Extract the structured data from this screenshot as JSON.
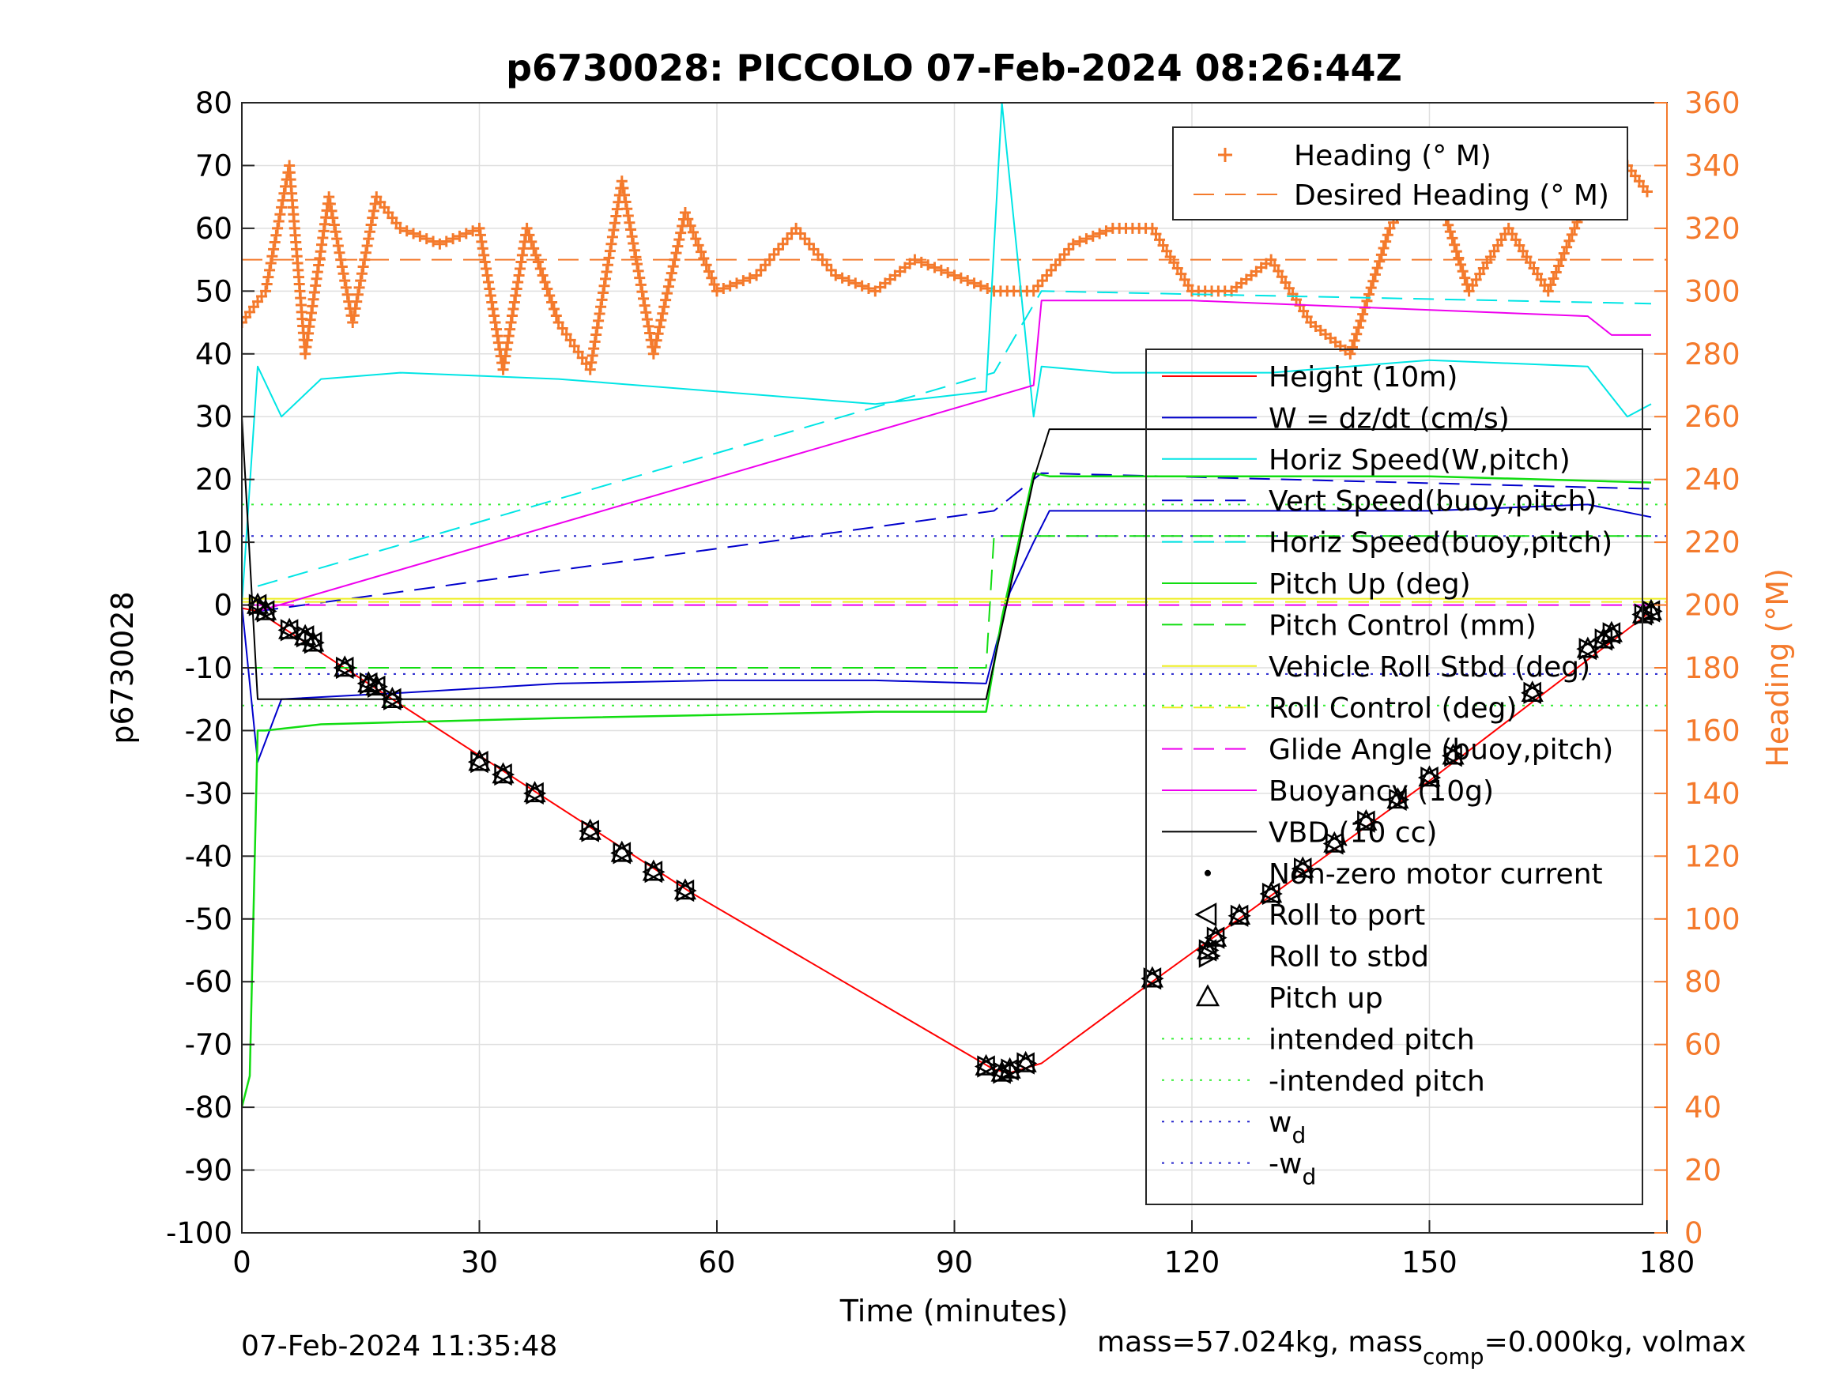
{
  "chart_data": {
    "type": "line",
    "title": "p6730028: PICCOLO 07-Feb-2024 08:26:44Z",
    "xlabel": "Time (minutes)",
    "ylabel": "p6730028",
    "y2label": "Heading (°M)",
    "xlim": [
      0,
      180
    ],
    "ylim": [
      -100,
      80
    ],
    "y2lim": [
      0,
      360
    ],
    "xticks": [
      "0",
      "30",
      "60",
      "90",
      "120",
      "150",
      "180"
    ],
    "yticks": [
      "80",
      "70",
      "60",
      "50",
      "40",
      "30",
      "20",
      "10",
      "0",
      "-10",
      "-20",
      "-30",
      "-40",
      "-50",
      "-60",
      "-70",
      "-80",
      "-90",
      "-100"
    ],
    "y2ticks": [
      "360",
      "340",
      "320",
      "300",
      "280",
      "260",
      "240",
      "220",
      "200",
      "180",
      "160",
      "140",
      "120",
      "100",
      "80",
      "60",
      "40",
      "20",
      "0"
    ],
    "grid": true,
    "legend_top": {
      "placement": "top-right",
      "entries": [
        "Heading (° M)",
        "Desired Heading (° M)"
      ]
    },
    "legend_main": {
      "placement": "right",
      "entries": [
        "Height (10m)",
        "W = dz/dt (cm/s)",
        "Horiz Speed(W,pitch)",
        "Vert Speed(buoy,pitch)",
        "Horiz Speed(buoy,pitch)",
        "Pitch Up (deg)",
        "Pitch Control (mm)",
        "Vehicle Roll Stbd (deg)",
        "Roll Control (deg)",
        "Glide Angle (buoy,pitch)",
        "Buoyancy (10g)",
        "VBD (10 cc)",
        "Non-zero motor current",
        "Roll to port",
        "Roll to stbd",
        "Pitch up",
        "intended pitch",
        "-intended pitch",
        "w",
        "-w"
      ],
      "subscripts": {
        "w": "d",
        "-w": "d"
      }
    },
    "series": [
      {
        "name": "Height (10m)",
        "x": [
          0,
          2,
          19,
          57,
          95,
          97,
          101,
          115,
          150,
          178
        ],
        "values": [
          -0.5,
          -1,
          -15,
          -46,
          -74,
          -74.5,
          -73,
          -60,
          -28,
          -1
        ]
      },
      {
        "name": "W = dz/dt (cm/s)",
        "x": [
          0,
          2,
          5,
          20,
          40,
          60,
          80,
          94,
          97,
          100,
          102,
          110,
          130,
          150,
          170,
          178
        ],
        "values": [
          0,
          -25,
          -15,
          -14,
          -12.5,
          -12,
          -12,
          -12.5,
          2,
          10,
          15,
          15,
          15,
          15,
          16,
          14
        ]
      },
      {
        "name": "Horiz Speed(W,pitch)",
        "x": [
          0,
          2,
          5,
          10,
          20,
          40,
          60,
          80,
          94,
          96,
          100,
          101,
          110,
          130,
          150,
          170,
          175,
          178
        ],
        "values": [
          0,
          38,
          30,
          36,
          37,
          36,
          34,
          32,
          34,
          80,
          30,
          38,
          37,
          37,
          39,
          38,
          30,
          32
        ]
      },
      {
        "name": "Vert Speed(buoy,pitch)",
        "x": [
          2,
          95,
          101,
          178
        ],
        "values": [
          -1,
          15,
          21,
          18.5
        ]
      },
      {
        "name": "Horiz Speed(buoy,pitch)",
        "x": [
          2,
          95,
          101,
          178
        ],
        "values": [
          3,
          37,
          50,
          48
        ]
      },
      {
        "name": "Pitch Up (deg)",
        "x": [
          0,
          1,
          2,
          3,
          10,
          40,
          80,
          94,
          96,
          100,
          102,
          130,
          150,
          178
        ],
        "values": [
          -80,
          -75,
          -20,
          -20,
          -19,
          -18,
          -17,
          -17,
          -2,
          21,
          20.5,
          20.5,
          20.5,
          19.5
        ]
      },
      {
        "name": "Pitch Control (mm)",
        "x": [
          0,
          94,
          95,
          178
        ],
        "values": [
          -10,
          -10,
          11,
          11
        ]
      },
      {
        "name": "Vehicle Roll Stbd (deg)",
        "x": [
          0,
          180
        ],
        "values": [
          1,
          1
        ]
      },
      {
        "name": "Roll Control (deg)",
        "x": [
          0,
          180
        ],
        "values": [
          0.5,
          0.5
        ]
      },
      {
        "name": "Glide Angle (buoy,pitch)",
        "x": [
          0,
          180
        ],
        "values": [
          0,
          0
        ]
      },
      {
        "name": "Buoyancy (10g)",
        "x": [
          2,
          100,
          101,
          120,
          170,
          173,
          178
        ],
        "values": [
          -1,
          35,
          48.5,
          48.5,
          46,
          43,
          43
        ]
      },
      {
        "name": "VBD (10 cc)",
        "x": [
          0,
          2,
          94,
          100,
          102,
          178
        ],
        "values": [
          30,
          -15,
          -15,
          20,
          28,
          28
        ]
      },
      {
        "name": "intended pitch",
        "x": [
          0,
          180
        ],
        "values": [
          16,
          16
        ]
      },
      {
        "name": "-intended pitch",
        "x": [
          0,
          180
        ],
        "values": [
          -16,
          -16
        ]
      },
      {
        "name": "w",
        "x": [
          0,
          180
        ],
        "values": [
          11,
          11
        ]
      },
      {
        "name": "-w",
        "x": [
          0,
          180
        ],
        "values": [
          -11,
          -11
        ]
      },
      {
        "name": "Heading (° M)",
        "axis": "right",
        "x": [
          0,
          3,
          6,
          8,
          11,
          14,
          17,
          20,
          25,
          30,
          33,
          36,
          40,
          44,
          48,
          52,
          56,
          60,
          65,
          70,
          75,
          80,
          85,
          90,
          95,
          100,
          105,
          110,
          115,
          120,
          125,
          130,
          135,
          140,
          145,
          150,
          155,
          160,
          165,
          170,
          175,
          178
        ],
        "values": [
          290,
          300,
          340,
          280,
          330,
          290,
          330,
          320,
          315,
          320,
          275,
          320,
          290,
          275,
          335,
          280,
          325,
          300,
          305,
          320,
          305,
          300,
          310,
          305,
          300,
          300,
          315,
          320,
          320,
          300,
          300,
          310,
          290,
          280,
          320,
          340,
          300,
          320,
          300,
          330,
          340,
          330
        ]
      },
      {
        "name": "Desired Heading (° M)",
        "axis": "right",
        "x": [
          0,
          180
        ],
        "values": [
          310,
          310
        ]
      }
    ],
    "markers": {
      "Roll to port / Roll to stbd / Pitch up": {
        "x": [
          2,
          3,
          6,
          8,
          9,
          13,
          16,
          17,
          19,
          30,
          33,
          37,
          44,
          48,
          52,
          56,
          94,
          96,
          97,
          99,
          115,
          122,
          123,
          126,
          130,
          134,
          138,
          142,
          146,
          150,
          153,
          163,
          170,
          172,
          173,
          177,
          178
        ],
        "values": [
          0,
          -1,
          -4,
          -5,
          -6,
          -10,
          -12.5,
          -13,
          -15,
          -25,
          -27,
          -30,
          -36,
          -39.5,
          -42.5,
          -45.5,
          -73.5,
          -74.5,
          -74,
          -73,
          -59.5,
          -55,
          -53,
          -49.5,
          -46,
          -42,
          -38,
          -34.5,
          -31,
          -27.5,
          -24,
          -14,
          -7,
          -5.5,
          -4.5,
          -1.5,
          -1
        ]
      }
    },
    "footer_left": "07-Feb-2024 11:35:48",
    "footer_right": {
      "base": "mass=57.024kg, mass",
      "sub": "comp",
      "rest": "=0.000kg, volmax"
    }
  }
}
